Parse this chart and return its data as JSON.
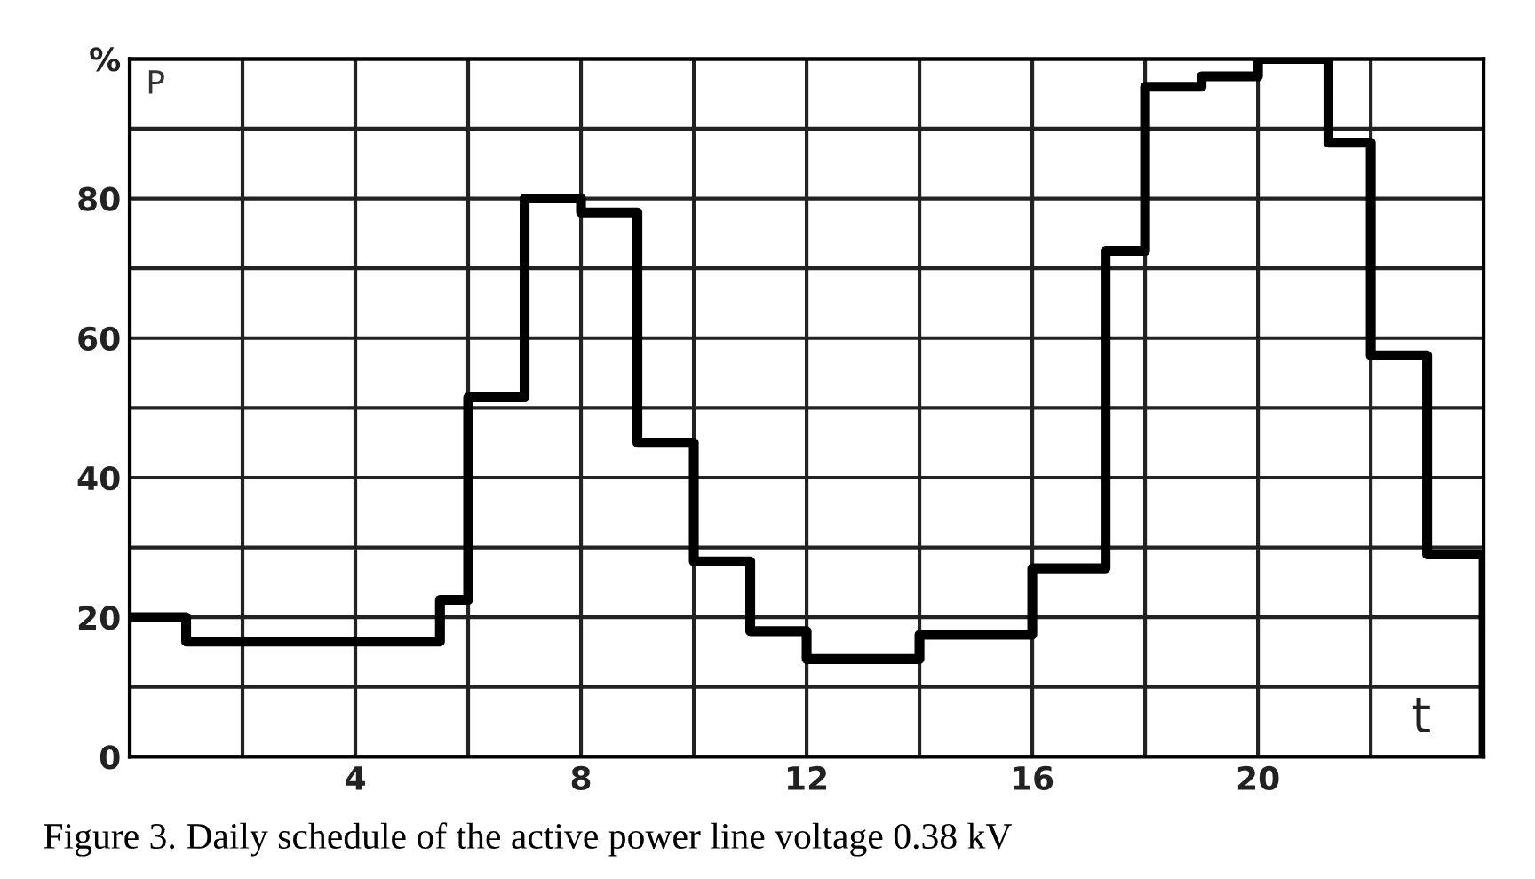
{
  "chart_data": {
    "type": "step",
    "ylabel": "P",
    "xlabel": "t",
    "x": [
      0,
      1,
      5.5,
      6,
      7,
      8,
      9,
      10,
      11,
      12,
      14,
      16,
      17.3,
      18,
      19,
      20,
      21.25,
      22,
      23,
      24
    ],
    "series": [
      {
        "color": "#000000",
        "values": [
          20,
          16.5,
          22.5,
          51.5,
          80,
          78,
          45,
          28,
          18,
          14,
          17.5,
          27,
          72.5,
          96,
          97.5,
          100,
          88,
          57.5,
          29,
          0
        ]
      }
    ],
    "xlim": [
      0,
      24
    ],
    "xticks": [
      {
        "value": 0,
        "label": null
      },
      {
        "value": 2,
        "label": null
      },
      4,
      {
        "value": 6,
        "label": null
      },
      8,
      {
        "value": 10,
        "label": null
      },
      12,
      {
        "value": 14,
        "label": null
      },
      16,
      {
        "value": 18,
        "label": null
      },
      20,
      {
        "value": 22,
        "label": null
      },
      {
        "value": 24,
        "label": null
      }
    ],
    "ylim": [
      0,
      100
    ],
    "yticks": [
      0,
      {
        "value": 10,
        "label": null
      },
      20,
      {
        "value": 30,
        "label": null
      },
      40,
      {
        "value": 50,
        "label": null
      },
      60,
      {
        "value": 70,
        "label": null
      },
      80,
      {
        "value": 90,
        "label": null
      },
      {
        "value": 100,
        "label": "%"
      }
    ],
    "grid": true,
    "line_style": "solid",
    "marker": "none",
    "annotations": [
      "Figure 3. Daily schedule of the active power line voltage 0.38 kV"
    ]
  }
}
